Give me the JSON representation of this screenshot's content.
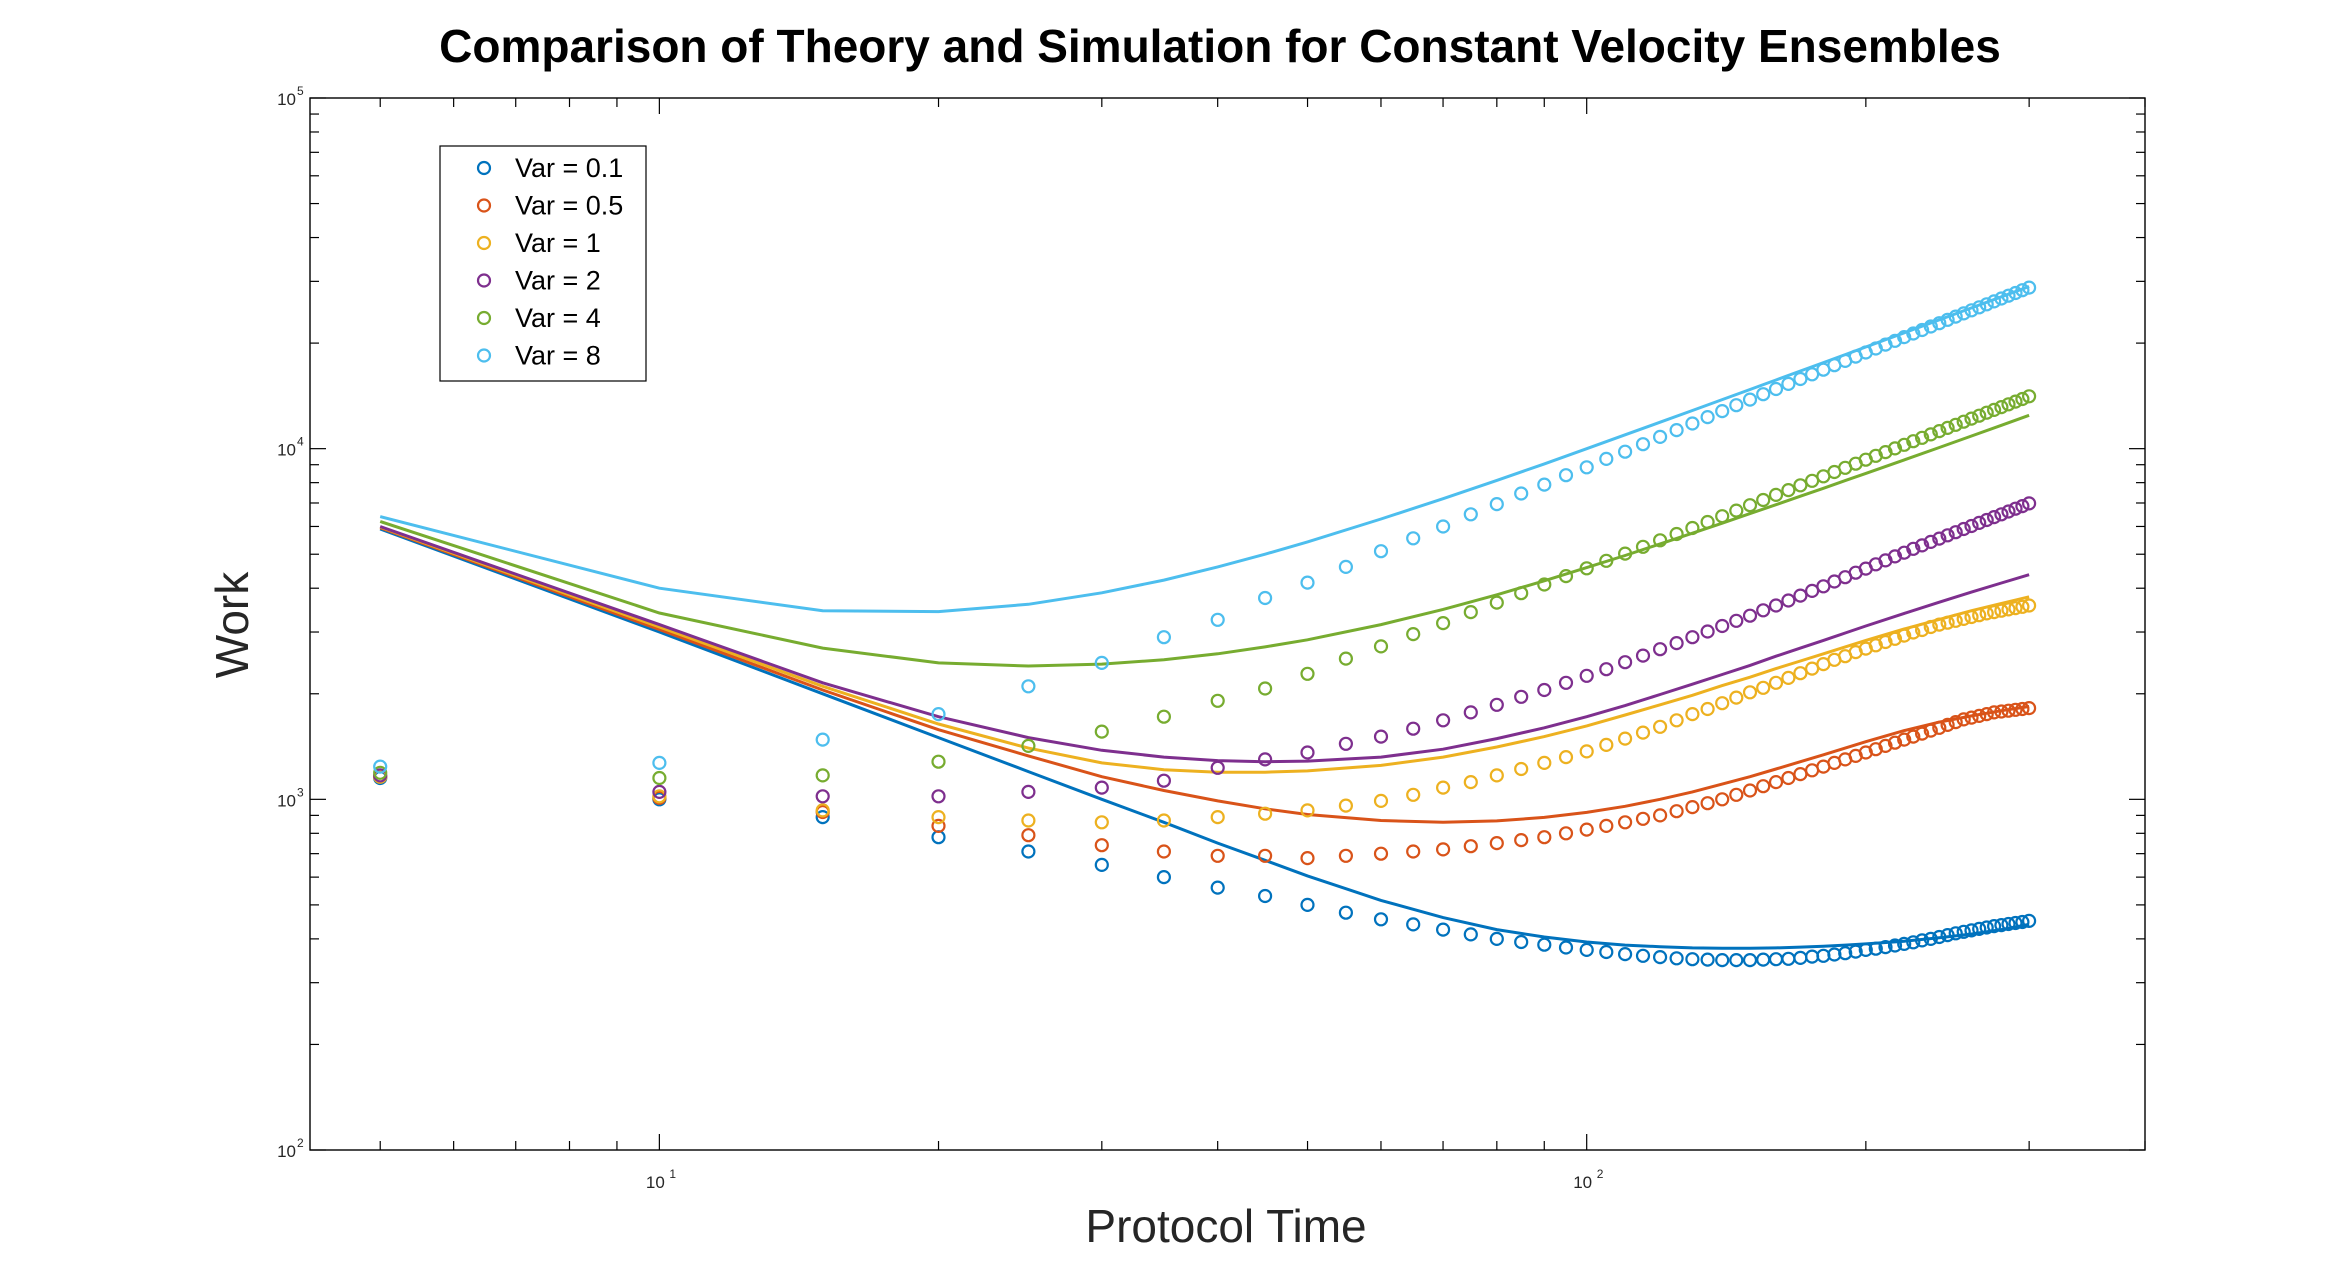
{
  "chart_data": {
    "type": "scatter",
    "title": "Comparison of Theory and Simulation for Constant Velocity Ensembles",
    "xlabel": "Protocol Time",
    "ylabel": "Work",
    "xscale": "log",
    "yscale": "log",
    "xlim": [
      4.2,
      400
    ],
    "ylim": [
      100,
      100000
    ],
    "xticks": [
      {
        "value": 10,
        "base": "10",
        "exp": "1"
      },
      {
        "value": 100,
        "base": "10",
        "exp": "2"
      }
    ],
    "yticks": [
      {
        "value": 100,
        "base": "10",
        "exp": "2"
      },
      {
        "value": 1000,
        "base": "10",
        "exp": "3"
      },
      {
        "value": 10000,
        "base": "10",
        "exp": "4"
      },
      {
        "value": 100000,
        "base": "10",
        "exp": "5"
      }
    ],
    "grid": false,
    "legend_position": "top-left",
    "legend": [
      "Var = 0.1",
      "Var = 0.5",
      "Var = 1",
      "Var = 2",
      "Var = 4",
      "Var = 8"
    ],
    "series": [
      {
        "name": "Var = 0.1",
        "color": "#0072BD",
        "points_x": [
          5,
          10,
          15,
          20,
          25,
          30,
          35,
          40,
          45,
          50,
          55,
          60,
          65,
          70,
          75,
          80,
          85,
          90,
          95,
          100,
          105,
          110,
          115,
          120,
          125,
          130,
          135,
          140,
          145,
          150,
          155,
          160,
          165,
          170,
          175,
          180,
          185,
          190,
          195,
          200,
          205,
          210,
          215,
          220,
          225,
          230,
          235,
          240,
          245,
          250,
          255,
          260,
          265,
          270,
          275,
          280,
          285,
          290,
          295,
          300
        ],
        "points_y": [
          1150,
          1000,
          890,
          780,
          710,
          650,
          600,
          560,
          530,
          500,
          475,
          455,
          440,
          425,
          412,
          400,
          392,
          385,
          378,
          372,
          367,
          362,
          358,
          355,
          352,
          350,
          349,
          348,
          348,
          348,
          349,
          350,
          351,
          353,
          356,
          358,
          361,
          364,
          368,
          372,
          375,
          379,
          383,
          387,
          391,
          396,
          400,
          405,
          410,
          415,
          419,
          423,
          427,
          431,
          435,
          438,
          441,
          444,
          447,
          450
        ],
        "theory_x": [
          5,
          10,
          15,
          20,
          25,
          30,
          35,
          40,
          45,
          50,
          60,
          70,
          80,
          90,
          100,
          110,
          120,
          130,
          140,
          150,
          160,
          170,
          180,
          190,
          200,
          220,
          240,
          260,
          280,
          300
        ],
        "theory_y": [
          5900,
          3000,
          2000,
          1500,
          1200,
          1000,
          860,
          750,
          670,
          605,
          515,
          460,
          425,
          405,
          392,
          384,
          380,
          377,
          376,
          376,
          377,
          379,
          381,
          384,
          387,
          394,
          403,
          413,
          425,
          440
        ]
      },
      {
        "name": "Var = 0.5",
        "color": "#D95319",
        "points_x": [
          5,
          10,
          15,
          20,
          25,
          30,
          35,
          40,
          45,
          50,
          55,
          60,
          65,
          70,
          75,
          80,
          85,
          90,
          95,
          100,
          105,
          110,
          115,
          120,
          125,
          130,
          135,
          140,
          145,
          150,
          155,
          160,
          165,
          170,
          175,
          180,
          185,
          190,
          195,
          200,
          205,
          210,
          215,
          220,
          225,
          230,
          235,
          240,
          245,
          250,
          255,
          260,
          265,
          270,
          275,
          280,
          285,
          290,
          295,
          300
        ],
        "points_y": [
          1160,
          1010,
          920,
          840,
          790,
          740,
          710,
          690,
          690,
          680,
          690,
          700,
          710,
          720,
          735,
          750,
          765,
          780,
          800,
          820,
          840,
          860,
          880,
          900,
          925,
          950,
          975,
          1000,
          1030,
          1060,
          1090,
          1120,
          1150,
          1180,
          1210,
          1240,
          1270,
          1300,
          1330,
          1360,
          1390,
          1420,
          1450,
          1480,
          1510,
          1540,
          1570,
          1600,
          1630,
          1660,
          1690,
          1710,
          1730,
          1750,
          1770,
          1780,
          1790,
          1800,
          1810,
          1820
        ],
        "theory_x": [
          5,
          10,
          15,
          20,
          25,
          30,
          35,
          40,
          45,
          50,
          60,
          70,
          80,
          90,
          100,
          110,
          120,
          130,
          140,
          150,
          160,
          170,
          180,
          190,
          200,
          220,
          240,
          260,
          280,
          300
        ],
        "theory_y": [
          5950,
          3050,
          2050,
          1580,
          1330,
          1160,
          1060,
          990,
          940,
          905,
          870,
          860,
          868,
          888,
          918,
          955,
          1000,
          1050,
          1105,
          1160,
          1220,
          1280,
          1340,
          1400,
          1460,
          1570,
          1660,
          1730,
          1790,
          1840
        ]
      },
      {
        "name": "Var = 1",
        "color": "#EDB120",
        "points_x": [
          5,
          10,
          15,
          20,
          25,
          30,
          35,
          40,
          45,
          50,
          55,
          60,
          65,
          70,
          75,
          80,
          85,
          90,
          95,
          100,
          105,
          110,
          115,
          120,
          125,
          130,
          135,
          140,
          145,
          150,
          155,
          160,
          165,
          170,
          175,
          180,
          185,
          190,
          195,
          200,
          205,
          210,
          215,
          220,
          225,
          230,
          235,
          240,
          245,
          250,
          255,
          260,
          265,
          270,
          275,
          280,
          285,
          290,
          295,
          300
        ],
        "points_y": [
          1160,
          1020,
          930,
          890,
          870,
          860,
          870,
          890,
          910,
          930,
          960,
          990,
          1030,
          1080,
          1120,
          1170,
          1220,
          1270,
          1320,
          1370,
          1430,
          1490,
          1550,
          1610,
          1680,
          1750,
          1810,
          1880,
          1950,
          2020,
          2080,
          2150,
          2220,
          2290,
          2360,
          2430,
          2500,
          2560,
          2630,
          2690,
          2750,
          2810,
          2870,
          2930,
          2990,
          3040,
          3100,
          3150,
          3190,
          3230,
          3270,
          3310,
          3350,
          3390,
          3420,
          3450,
          3480,
          3510,
          3540,
          3570
        ],
        "theory_x": [
          5,
          10,
          15,
          20,
          25,
          30,
          35,
          40,
          45,
          50,
          60,
          70,
          80,
          90,
          100,
          110,
          120,
          130,
          140,
          150,
          160,
          170,
          180,
          190,
          200,
          220,
          240,
          260,
          280,
          300
        ],
        "theory_y": [
          5980,
          3100,
          2100,
          1640,
          1400,
          1270,
          1215,
          1195,
          1195,
          1205,
          1250,
          1320,
          1410,
          1510,
          1620,
          1740,
          1860,
          1980,
          2110,
          2230,
          2360,
          2480,
          2600,
          2720,
          2840,
          3060,
          3260,
          3450,
          3620,
          3780
        ]
      },
      {
        "name": "Var = 2",
        "color": "#7E2F8E",
        "points_x": [
          5,
          10,
          15,
          20,
          25,
          30,
          35,
          40,
          45,
          50,
          55,
          60,
          65,
          70,
          75,
          80,
          85,
          90,
          95,
          100,
          105,
          110,
          115,
          120,
          125,
          130,
          135,
          140,
          145,
          150,
          155,
          160,
          165,
          170,
          175,
          180,
          185,
          190,
          195,
          200,
          205,
          210,
          215,
          220,
          225,
          230,
          235,
          240,
          245,
          250,
          255,
          260,
          265,
          270,
          275,
          280,
          285,
          290,
          295,
          300
        ],
        "points_y": [
          1170,
          1050,
          1020,
          1020,
          1050,
          1080,
          1130,
          1230,
          1300,
          1360,
          1440,
          1510,
          1590,
          1680,
          1770,
          1860,
          1960,
          2050,
          2150,
          2250,
          2350,
          2460,
          2570,
          2680,
          2790,
          2900,
          3010,
          3120,
          3230,
          3340,
          3460,
          3570,
          3690,
          3810,
          3930,
          4050,
          4180,
          4300,
          4430,
          4550,
          4680,
          4800,
          4930,
          5050,
          5180,
          5300,
          5420,
          5540,
          5660,
          5780,
          5900,
          6020,
          6140,
          6260,
          6380,
          6500,
          6620,
          6740,
          6860,
          6980
        ],
        "theory_x": [
          5,
          10,
          15,
          20,
          25,
          30,
          35,
          40,
          45,
          50,
          60,
          70,
          80,
          90,
          100,
          110,
          120,
          130,
          140,
          150,
          160,
          170,
          180,
          190,
          200,
          220,
          240,
          260,
          280,
          300
        ],
        "theory_y": [
          6000,
          3150,
          2150,
          1720,
          1500,
          1380,
          1320,
          1290,
          1280,
          1285,
          1320,
          1390,
          1490,
          1600,
          1720,
          1850,
          1990,
          2130,
          2270,
          2410,
          2560,
          2700,
          2840,
          2980,
          3120,
          3390,
          3650,
          3900,
          4140,
          4370
        ]
      },
      {
        "name": "Var = 4",
        "color": "#77AC30",
        "points_x": [
          5,
          10,
          15,
          20,
          25,
          30,
          35,
          40,
          45,
          50,
          55,
          60,
          65,
          70,
          75,
          80,
          85,
          90,
          95,
          100,
          105,
          110,
          115,
          120,
          125,
          130,
          135,
          140,
          145,
          150,
          155,
          160,
          165,
          170,
          175,
          180,
          185,
          190,
          195,
          200,
          205,
          210,
          215,
          220,
          225,
          230,
          235,
          240,
          245,
          250,
          255,
          260,
          265,
          270,
          275,
          280,
          285,
          290,
          295,
          300
        ],
        "points_y": [
          1190,
          1150,
          1170,
          1280,
          1420,
          1560,
          1720,
          1910,
          2070,
          2280,
          2520,
          2730,
          2960,
          3180,
          3420,
          3640,
          3870,
          4100,
          4330,
          4560,
          4790,
          5020,
          5250,
          5480,
          5710,
          5940,
          6180,
          6420,
          6660,
          6900,
          7140,
          7380,
          7620,
          7860,
          8100,
          8340,
          8580,
          8820,
          9060,
          9300,
          9540,
          9780,
          10020,
          10260,
          10500,
          10740,
          10980,
          11220,
          11460,
          11700,
          11940,
          12180,
          12420,
          12660,
          12900,
          13140,
          13380,
          13620,
          13860,
          14100
        ],
        "theory_x": [
          5,
          10,
          15,
          20,
          25,
          30,
          35,
          40,
          45,
          50,
          60,
          70,
          80,
          90,
          100,
          110,
          120,
          130,
          140,
          150,
          160,
          170,
          180,
          190,
          200,
          220,
          240,
          260,
          280,
          300
        ],
        "theory_y": [
          6200,
          3400,
          2700,
          2450,
          2400,
          2430,
          2500,
          2600,
          2720,
          2850,
          3150,
          3480,
          3830,
          4200,
          4580,
          4960,
          5350,
          5740,
          6130,
          6530,
          6920,
          7320,
          7710,
          8110,
          8500,
          9290,
          10080,
          10870,
          11660,
          12450
        ]
      },
      {
        "name": "Var = 8",
        "color": "#4DBEEE",
        "points_x": [
          5,
          10,
          15,
          20,
          25,
          30,
          35,
          40,
          45,
          50,
          55,
          60,
          65,
          70,
          75,
          80,
          85,
          90,
          95,
          100,
          105,
          110,
          115,
          120,
          125,
          130,
          135,
          140,
          145,
          150,
          155,
          160,
          165,
          170,
          175,
          180,
          185,
          190,
          195,
          200,
          205,
          210,
          215,
          220,
          225,
          230,
          235,
          240,
          245,
          250,
          255,
          260,
          265,
          270,
          275,
          280,
          285,
          290,
          295,
          300
        ],
        "points_y": [
          1240,
          1270,
          1480,
          1750,
          2100,
          2450,
          2900,
          3250,
          3750,
          4150,
          4600,
          5100,
          5550,
          6000,
          6500,
          6950,
          7450,
          7900,
          8400,
          8850,
          9350,
          9800,
          10300,
          10800,
          11300,
          11800,
          12300,
          12800,
          13300,
          13800,
          14300,
          14800,
          15300,
          15800,
          16300,
          16800,
          17300,
          17800,
          18300,
          18800,
          19300,
          19800,
          20300,
          20800,
          21300,
          21800,
          22300,
          22800,
          23300,
          23800,
          24300,
          24800,
          25300,
          25800,
          26300,
          26800,
          27300,
          27800,
          28300,
          28800
        ],
        "theory_x": [
          5,
          10,
          15,
          20,
          25,
          30,
          35,
          40,
          45,
          50,
          60,
          70,
          80,
          90,
          100,
          110,
          120,
          130,
          140,
          150,
          160,
          170,
          180,
          190,
          200,
          220,
          240,
          260,
          280,
          300
        ],
        "theory_y": [
          6400,
          4000,
          3450,
          3430,
          3600,
          3880,
          4220,
          4600,
          5000,
          5420,
          6300,
          7200,
          8120,
          9050,
          10000,
          10950,
          11900,
          12850,
          13800,
          14750,
          15700,
          16650,
          17600,
          18550,
          19500,
          21400,
          23300,
          25200,
          27100,
          29000
        ]
      }
    ]
  }
}
